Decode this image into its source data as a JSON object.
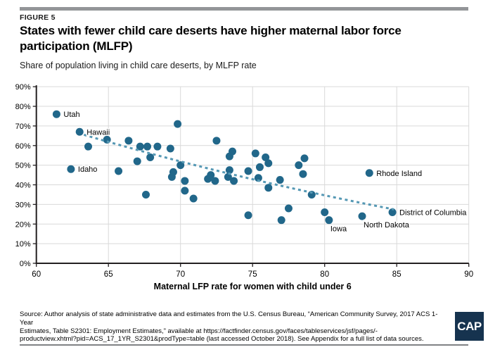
{
  "header": {
    "figure_label": "FIGURE 5",
    "title": "States with fewer child care deserts have higher maternal labor force participation (MLFP)",
    "subtitle": "Share of population living in child care deserts, by MLFP rate"
  },
  "chart_data": {
    "type": "scatter",
    "title": "States with fewer child care deserts have higher maternal labor force participation (MLFP)",
    "xlabel": "Maternal LFP rate for women with child under 6",
    "ylabel": "",
    "xlim": [
      60,
      90
    ],
    "ylim": [
      0,
      90
    ],
    "x_ticks": [
      60,
      65,
      70,
      75,
      80,
      85,
      90
    ],
    "y_tick_values": [
      0,
      10,
      20,
      30,
      40,
      50,
      60,
      70,
      80,
      90
    ],
    "y_tick_labels": [
      "0%",
      "10%",
      "20%",
      "30%",
      "40%",
      "50%",
      "60%",
      "70%",
      "80%",
      "90%"
    ],
    "grid": true,
    "legend": "none",
    "colors": {
      "point": "#21678a",
      "trend": "#5598b4",
      "grid": "#d9d9d9",
      "axis": "#231f20",
      "label": "#000000"
    },
    "trendline": {
      "style": "dashed",
      "start": {
        "x": 63.3,
        "y": 65.5
      },
      "control": {
        "x": 73.5,
        "y": 43.5
      },
      "end": {
        "x": 84.8,
        "y": 27.5
      }
    },
    "points": [
      {
        "x": 61.4,
        "y": 76,
        "label": "Utah",
        "label_side": "right"
      },
      {
        "x": 62.4,
        "y": 48,
        "label": "Idaho",
        "label_side": "right"
      },
      {
        "x": 63.0,
        "y": 67,
        "label": "Hawaii",
        "label_side": "right"
      },
      {
        "x": 63.6,
        "y": 59.5
      },
      {
        "x": 64.9,
        "y": 63
      },
      {
        "x": 65.7,
        "y": 47
      },
      {
        "x": 66.4,
        "y": 62.5
      },
      {
        "x": 67.0,
        "y": 52
      },
      {
        "x": 67.2,
        "y": 59.5
      },
      {
        "x": 67.6,
        "y": 35
      },
      {
        "x": 67.7,
        "y": 59.5
      },
      {
        "x": 67.9,
        "y": 54
      },
      {
        "x": 68.4,
        "y": 59.5
      },
      {
        "x": 69.3,
        "y": 58.5
      },
      {
        "x": 69.8,
        "y": 71
      },
      {
        "x": 69.4,
        "y": 44
      },
      {
        "x": 69.5,
        "y": 46.5
      },
      {
        "x": 70.0,
        "y": 50
      },
      {
        "x": 70.3,
        "y": 42
      },
      {
        "x": 70.3,
        "y": 37
      },
      {
        "x": 70.9,
        "y": 33
      },
      {
        "x": 71.9,
        "y": 43
      },
      {
        "x": 72.1,
        "y": 45
      },
      {
        "x": 72.4,
        "y": 42
      },
      {
        "x": 72.5,
        "y": 62.5
      },
      {
        "x": 73.3,
        "y": 44
      },
      {
        "x": 73.4,
        "y": 54.5
      },
      {
        "x": 73.4,
        "y": 47.5
      },
      {
        "x": 73.6,
        "y": 57
      },
      {
        "x": 73.7,
        "y": 42
      },
      {
        "x": 74.7,
        "y": 47
      },
      {
        "x": 74.7,
        "y": 24.5
      },
      {
        "x": 75.2,
        "y": 56
      },
      {
        "x": 75.4,
        "y": 43.5
      },
      {
        "x": 75.5,
        "y": 49
      },
      {
        "x": 75.9,
        "y": 54
      },
      {
        "x": 76.1,
        "y": 51
      },
      {
        "x": 76.1,
        "y": 38.5
      },
      {
        "x": 76.9,
        "y": 42.5
      },
      {
        "x": 77.0,
        "y": 22
      },
      {
        "x": 77.5,
        "y": 28
      },
      {
        "x": 78.2,
        "y": 50
      },
      {
        "x": 78.5,
        "y": 45.5
      },
      {
        "x": 78.6,
        "y": 53.5
      },
      {
        "x": 79.1,
        "y": 35
      },
      {
        "x": 80.0,
        "y": 26
      },
      {
        "x": 80.3,
        "y": 22,
        "label": "Iowa",
        "label_side": "below"
      },
      {
        "x": 82.6,
        "y": 24,
        "label": "North Dakota",
        "label_side": "below"
      },
      {
        "x": 83.1,
        "y": 46,
        "label": "Rhode Island",
        "label_side": "right"
      },
      {
        "x": 84.7,
        "y": 26,
        "label": "District of Columbia",
        "label_side": "right"
      }
    ]
  },
  "footer": {
    "source_lines": [
      "Source: Author analysis of state administrative data and estimates from the U.S. Census Bureau, “American Community Survey, 2017 ACS 1-Year",
      "Estimates, Table S2301: Employment Estimates,” available at https://factfinder.census.gov/faces/tableservices/jsf/pages/-",
      "productview.xhtml?pid=ACS_17_1YR_S2301&prodType=table (last accessed October 2018). See Appendix for a full list of data sources."
    ],
    "logo": "CAP"
  }
}
